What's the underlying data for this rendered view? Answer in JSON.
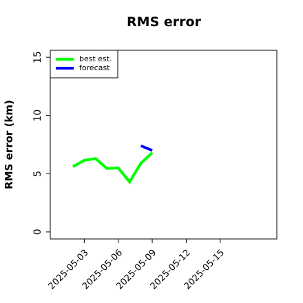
{
  "chart_data": {
    "type": "line",
    "title": "RMS error",
    "y_label": "RMS error (km)",
    "series": [
      {
        "name": "best est.",
        "color": "#00ff00",
        "x": [
          "2025-05-02",
          "2025-05-03",
          "2025-05-04",
          "2025-05-05",
          "2025-05-06",
          "2025-05-07",
          "2025-05-08",
          "2025-05-09"
        ],
        "values": [
          5.6,
          6.15,
          6.3,
          5.45,
          5.5,
          4.3,
          5.9,
          6.8
        ]
      },
      {
        "name": "forecast",
        "color": "#0000ff",
        "x": [
          "2025-05-08",
          "2025-05-09"
        ],
        "values": [
          7.4,
          7.0
        ]
      }
    ],
    "xlim": [
      "2025-04-30",
      "2025-05-20"
    ],
    "xticks": [
      "2025-05-03",
      "2025-05-06",
      "2025-05-09",
      "2025-05-12",
      "2025-05-15"
    ],
    "ylim": [
      -0.6,
      15.6
    ],
    "yticks": [
      0,
      5,
      10,
      15
    ],
    "legend": "top-left"
  }
}
